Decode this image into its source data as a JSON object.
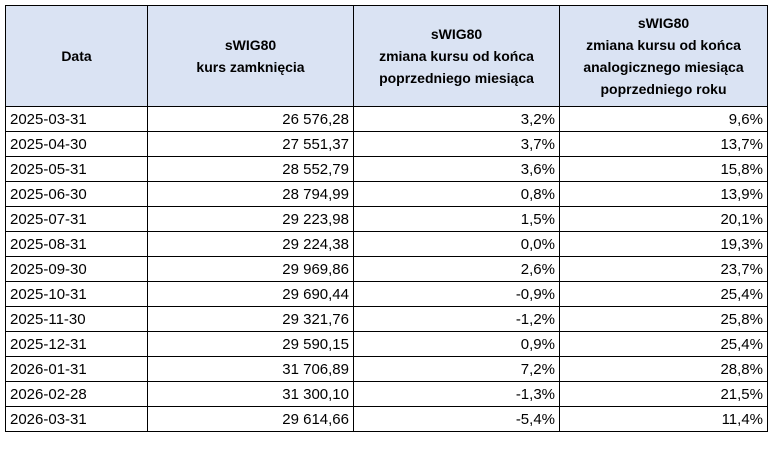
{
  "table": {
    "headers": [
      {
        "lines": [
          "Data"
        ]
      },
      {
        "lines": [
          "sWIG80",
          "kurs zamknięcia"
        ]
      },
      {
        "lines": [
          "sWIG80",
          "zmiana kursu od końca",
          "poprzedniego miesiąca"
        ]
      },
      {
        "lines": [
          "sWIG80",
          "zmiana kursu  od końca",
          "analogicznego miesiąca",
          "poprzedniego roku"
        ]
      }
    ],
    "rows": [
      {
        "date": "2025-03-31",
        "close": "26 576,28",
        "mom": "3,2%",
        "yoy": "9,6%"
      },
      {
        "date": "2025-04-30",
        "close": "27 551,37",
        "mom": "3,7%",
        "yoy": "13,7%"
      },
      {
        "date": "2025-05-31",
        "close": "28 552,79",
        "mom": "3,6%",
        "yoy": "15,8%"
      },
      {
        "date": "2025-06-30",
        "close": "28 794,99",
        "mom": "0,8%",
        "yoy": "13,9%"
      },
      {
        "date": "2025-07-31",
        "close": "29 223,98",
        "mom": "1,5%",
        "yoy": "20,1%"
      },
      {
        "date": "2025-08-31",
        "close": "29 224,38",
        "mom": "0,0%",
        "yoy": "19,3%"
      },
      {
        "date": "2025-09-30",
        "close": "29 969,86",
        "mom": "2,6%",
        "yoy": "23,7%"
      },
      {
        "date": "2025-10-31",
        "close": "29 690,44",
        "mom": "-0,9%",
        "yoy": "25,4%"
      },
      {
        "date": "2025-11-30",
        "close": "29 321,76",
        "mom": "-1,2%",
        "yoy": "25,8%"
      },
      {
        "date": "2025-12-31",
        "close": "29 590,15",
        "mom": "0,9%",
        "yoy": "25,4%"
      },
      {
        "date": "2026-01-31",
        "close": "31 706,89",
        "mom": "7,2%",
        "yoy": "28,8%"
      },
      {
        "date": "2026-02-28",
        "close": "31 300,10",
        "mom": "-1,3%",
        "yoy": "21,5%"
      },
      {
        "date": "2026-03-31",
        "close": "29 614,66",
        "mom": "-5,4%",
        "yoy": "11,4%"
      }
    ]
  }
}
